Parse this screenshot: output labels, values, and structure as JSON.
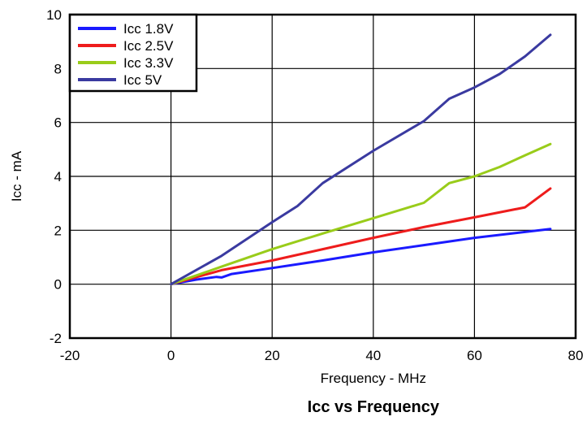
{
  "chart_data": {
    "type": "line",
    "title": "Icc vs Frequency",
    "xlabel": "Frequency - MHz",
    "ylabel": "Icc - mA",
    "xlim": [
      -20,
      80
    ],
    "ylim": [
      -2,
      10
    ],
    "xticks": [
      -20,
      0,
      20,
      40,
      60,
      80
    ],
    "yticks": [
      -2,
      0,
      2,
      4,
      6,
      8,
      10
    ],
    "grid": true,
    "legend_position": "top-left",
    "series": [
      {
        "name": "Icc 1.8V",
        "color": "#1a1aff",
        "points": [
          [
            0,
            0
          ],
          [
            5,
            0.17
          ],
          [
            9,
            0.27
          ],
          [
            10,
            0.25
          ],
          [
            12,
            0.38
          ],
          [
            20,
            0.6
          ],
          [
            30,
            0.88
          ],
          [
            40,
            1.18
          ],
          [
            50,
            1.45
          ],
          [
            60,
            1.72
          ],
          [
            75,
            2.05
          ]
        ]
      },
      {
        "name": "Icc 2.5V",
        "color": "#ee1c1c",
        "points": [
          [
            0,
            0
          ],
          [
            10,
            0.52
          ],
          [
            20,
            0.88
          ],
          [
            30,
            1.3
          ],
          [
            40,
            1.72
          ],
          [
            50,
            2.12
          ],
          [
            60,
            2.48
          ],
          [
            70,
            2.85
          ],
          [
            75,
            3.55
          ]
        ]
      },
      {
        "name": "Icc 3.3V",
        "color": "#99cc1a",
        "points": [
          [
            0,
            0
          ],
          [
            10,
            0.65
          ],
          [
            20,
            1.3
          ],
          [
            30,
            1.88
          ],
          [
            40,
            2.45
          ],
          [
            50,
            3.02
          ],
          [
            55,
            3.75
          ],
          [
            60,
            4.0
          ],
          [
            65,
            4.35
          ],
          [
            70,
            4.78
          ],
          [
            75,
            5.2
          ]
        ]
      },
      {
        "name": "Icc 5V",
        "color": "#3a3aa0",
        "points": [
          [
            0,
            0
          ],
          [
            10,
            1.05
          ],
          [
            20,
            2.3
          ],
          [
            25,
            2.9
          ],
          [
            30,
            3.75
          ],
          [
            40,
            4.95
          ],
          [
            50,
            6.05
          ],
          [
            55,
            6.88
          ],
          [
            60,
            7.3
          ],
          [
            65,
            7.8
          ],
          [
            70,
            8.45
          ],
          [
            75,
            9.25
          ]
        ]
      }
    ]
  }
}
